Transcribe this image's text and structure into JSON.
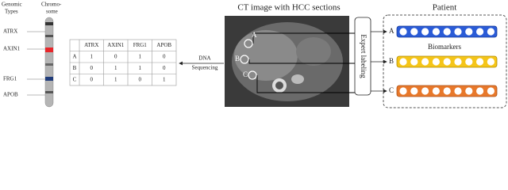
{
  "genomic_header": [
    "Genomic",
    "Types"
  ],
  "chromosome_header": [
    "Chromo-",
    "some"
  ],
  "genes": [
    "ATRX",
    "AXIN1",
    "FRG1",
    "APOB"
  ],
  "table": {
    "header": [
      "ATRX",
      "AXIN1",
      "FRG1",
      "APOB"
    ],
    "rows": [
      {
        "label": "A",
        "values": [
          1,
          0,
          1,
          0
        ]
      },
      {
        "label": "B",
        "values": [
          0,
          1,
          1,
          0
        ]
      },
      {
        "label": "C",
        "values": [
          0,
          1,
          0,
          1
        ]
      }
    ]
  },
  "sequencing_label": [
    "DNA",
    "Sequencing"
  ],
  "ct_title": "CT image with HCC sections",
  "ct_sections": [
    "A",
    "B",
    "C"
  ],
  "expert_label": "Expert labeling",
  "patient": {
    "title": "Patient",
    "rows": [
      "A",
      "B",
      "C"
    ],
    "biomarkers_label": "Biomarkers"
  }
}
